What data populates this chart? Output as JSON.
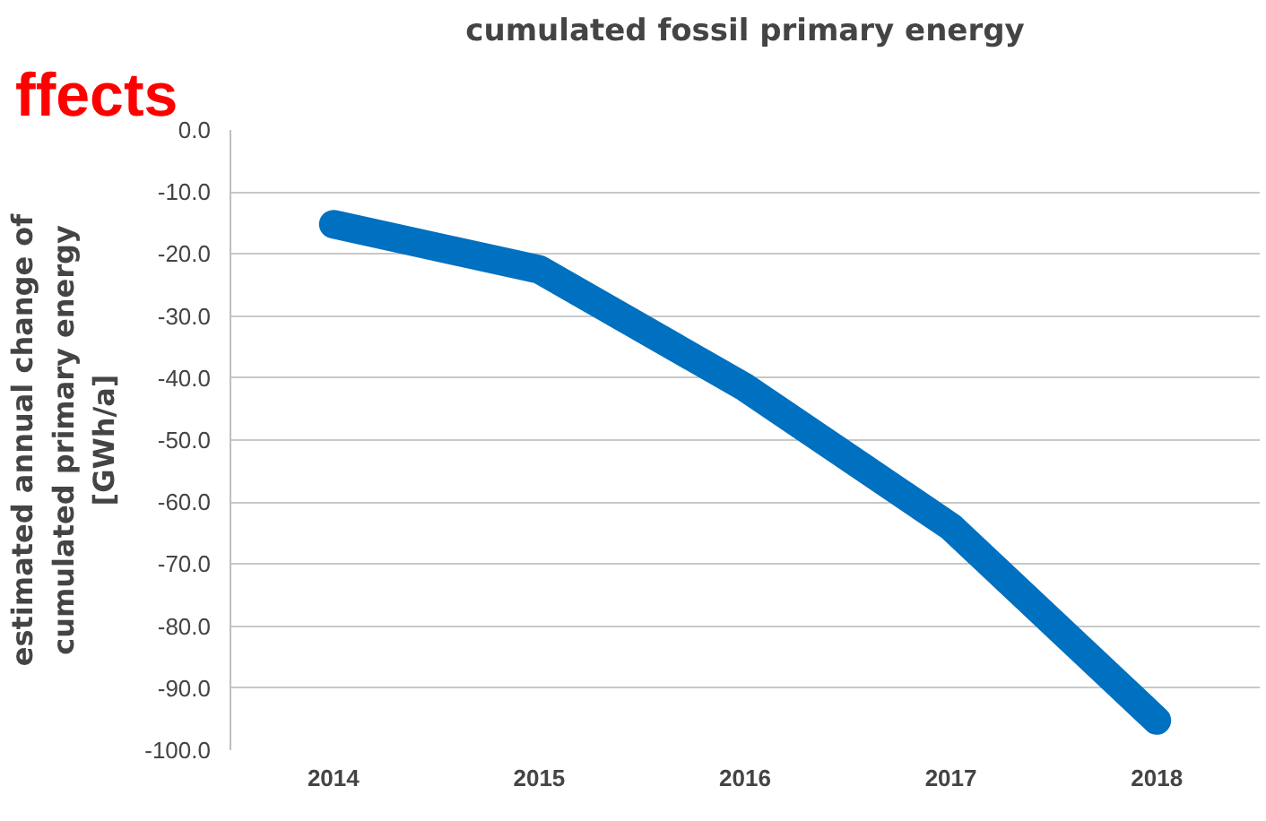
{
  "chart_data": {
    "type": "line",
    "title": "cumulated fossil primary energy",
    "ylabel": "estimated annual change of\ncumulated primary energy\n[GWh/a]",
    "annotations": [
      "ffects"
    ],
    "categories": [
      "2014",
      "2015",
      "2016",
      "2017",
      "2018"
    ],
    "series": [
      {
        "color": "#0070c0",
        "values": [
          -15.2,
          -22.5,
          -41.5,
          -64,
          -95.2
        ]
      }
    ],
    "ylim": [
      -100,
      0
    ],
    "yticks": [
      {
        "value": 0,
        "label": "0.0"
      },
      {
        "value": -10,
        "label": "-10.0"
      },
      {
        "value": -20,
        "label": "-20.0"
      },
      {
        "value": -30,
        "label": "-30.0"
      },
      {
        "value": -40,
        "label": "-40.0"
      },
      {
        "value": -50,
        "label": "-50.0"
      },
      {
        "value": -60,
        "label": "-60.0"
      },
      {
        "value": -70,
        "label": "-70.0"
      },
      {
        "value": -80,
        "label": "-80.0"
      },
      {
        "value": -90,
        "label": "-90.0"
      },
      {
        "value": -100,
        "label": "-100.0"
      }
    ],
    "grid": "y",
    "line_style": "solid"
  }
}
